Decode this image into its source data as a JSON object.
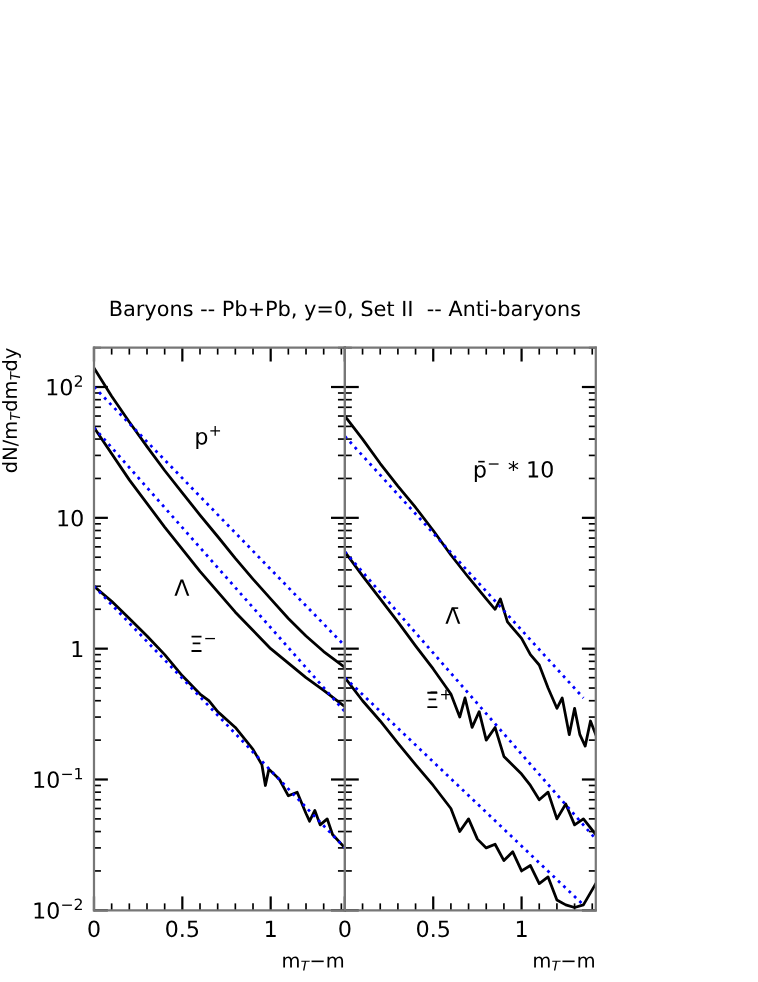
{
  "chart_data": [
    {
      "type": "line",
      "title": "Baryons -- Pb+Pb, y=0, Set II  -- Anti-baryons",
      "ylabel": "dN/m$_{T}$dm$_{T}$dy",
      "xlabel": "m$_{T}$−m",
      "log": "y",
      "grid": false,
      "marker": "none",
      "xlim": [
        0,
        1.42
      ],
      "xticks": [
        0,
        0.5,
        1
      ],
      "ylim": [
        0.01,
        200
      ],
      "yticks": [
        {
          "value": 0.01,
          "label": "10$^{−2}$"
        },
        {
          "value": 0.1,
          "label": "10$^{−1}$"
        },
        1,
        10,
        {
          "value": 100,
          "label": "10$^{2}$"
        }
      ],
      "annotations": [
        "p$^{+}$",
        "Λ",
        "Ξ$^{−}$"
      ],
      "series": [
        {
          "color": "#000000",
          "line_style": "solid",
          "x": [
            0,
            0.1,
            0.2,
            0.3,
            0.4,
            0.5,
            0.6,
            0.7,
            0.8,
            0.9,
            1.0,
            1.1,
            1.2,
            1.3,
            1.42
          ],
          "values": [
            140,
            85,
            54,
            35,
            23,
            15.5,
            10.5,
            7.2,
            4.9,
            3.4,
            2.4,
            1.7,
            1.25,
            0.95,
            0.72
          ]
        },
        {
          "color": "#0000ff",
          "line_style": "dotted",
          "x": [
            0,
            1.42
          ],
          "values": [
            100,
            1.05
          ]
        },
        {
          "color": "#000000",
          "line_style": "solid",
          "x": [
            0,
            0.2,
            0.4,
            0.6,
            0.8,
            1.0,
            1.2,
            1.3,
            1.42
          ],
          "values": [
            49,
            19.5,
            8.5,
            3.9,
            1.9,
            1.0,
            0.6,
            0.48,
            0.36
          ]
        },
        {
          "color": "#0000ff",
          "line_style": "dotted",
          "x": [
            0,
            1.42
          ],
          "values": [
            49,
            0.33
          ]
        },
        {
          "color": "#000000",
          "line_style": "solid",
          "x": [
            0,
            0.1,
            0.2,
            0.3,
            0.4,
            0.5,
            0.6,
            0.65,
            0.7,
            0.8,
            0.9,
            0.95,
            0.97,
            0.99,
            1.05,
            1.1,
            1.15,
            1.2,
            1.22,
            1.25,
            1.28,
            1.32,
            1.35,
            1.42
          ],
          "values": [
            3.0,
            2.3,
            1.7,
            1.25,
            0.9,
            0.62,
            0.45,
            0.4,
            0.33,
            0.25,
            0.17,
            0.13,
            0.09,
            0.12,
            0.1,
            0.075,
            0.08,
            0.055,
            0.048,
            0.058,
            0.045,
            0.05,
            0.038,
            0.03
          ]
        },
        {
          "color": "#0000ff",
          "line_style": "dotted",
          "x": [
            0,
            1.42
          ],
          "values": [
            3.0,
            0.03
          ]
        }
      ]
    },
    {
      "type": "line",
      "xlabel": "m$_{T}$−m",
      "log": "y",
      "grid": false,
      "marker": "none",
      "tick_labels": "x",
      "xlim": [
        0,
        1.42
      ],
      "xticks": [
        0,
        0.5,
        1
      ],
      "ylim": [
        0.01,
        200
      ],
      "yticks": [
        0.01,
        0.1,
        1,
        10,
        100
      ],
      "annotations": [
        "p̄$^{−}$ * 10",
        "Λ̄",
        "Ξ̄$^{+}$"
      ],
      "series": [
        {
          "color": "#000000",
          "line_style": "solid",
          "x": [
            0,
            0.1,
            0.2,
            0.3,
            0.4,
            0.5,
            0.6,
            0.7,
            0.8,
            0.85,
            0.88,
            0.92,
            1.0,
            1.05,
            1.1,
            1.15,
            1.2,
            1.23,
            1.27,
            1.3,
            1.33,
            1.36,
            1.39,
            1.42
          ],
          "values": [
            60,
            40,
            26,
            17.5,
            12,
            8,
            5.2,
            3.5,
            2.4,
            2.0,
            2.4,
            1.6,
            1.2,
            0.9,
            0.75,
            0.5,
            0.35,
            0.42,
            0.22,
            0.35,
            0.22,
            0.18,
            0.28,
            0.22
          ]
        },
        {
          "color": "#0000ff",
          "line_style": "dotted",
          "x": [
            0,
            1.35
          ],
          "values": [
            42,
            0.42
          ]
        },
        {
          "color": "#000000",
          "line_style": "solid",
          "x": [
            0,
            0.1,
            0.2,
            0.3,
            0.4,
            0.5,
            0.6,
            0.65,
            0.68,
            0.72,
            0.76,
            0.8,
            0.85,
            0.9,
            1.0,
            1.05,
            1.1,
            1.15,
            1.2,
            1.25,
            1.3,
            1.35,
            1.42
          ],
          "values": [
            5.5,
            3.6,
            2.4,
            1.6,
            1.05,
            0.7,
            0.45,
            0.3,
            0.42,
            0.25,
            0.33,
            0.2,
            0.25,
            0.15,
            0.11,
            0.09,
            0.07,
            0.08,
            0.05,
            0.065,
            0.045,
            0.05,
            0.038
          ]
        },
        {
          "color": "#0000ff",
          "line_style": "dotted",
          "x": [
            0,
            1.42
          ],
          "values": [
            5.5,
            0.035
          ]
        },
        {
          "color": "#000000",
          "line_style": "solid",
          "x": [
            0,
            0.1,
            0.2,
            0.3,
            0.4,
            0.5,
            0.6,
            0.65,
            0.7,
            0.75,
            0.8,
            0.85,
            0.9,
            0.95,
            1.0,
            1.05,
            1.1,
            1.15,
            1.2,
            1.25,
            1.3,
            1.35,
            1.42
          ],
          "values": [
            0.6,
            0.4,
            0.28,
            0.19,
            0.13,
            0.09,
            0.06,
            0.04,
            0.05,
            0.035,
            0.03,
            0.032,
            0.024,
            0.028,
            0.02,
            0.022,
            0.016,
            0.018,
            0.012,
            0.011,
            0.0105,
            0.011,
            0.016
          ]
        },
        {
          "color": "#0000ff",
          "line_style": "dotted",
          "x": [
            0,
            1.35
          ],
          "values": [
            0.6,
            0.011
          ]
        }
      ]
    }
  ]
}
